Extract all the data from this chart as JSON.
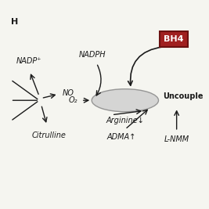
{
  "bg_color": "#f5f5f0",
  "bh4_box_color": "#a02020",
  "bh4_box_edge": "#6b1010",
  "bh4_text": "BH",
  "bh4_text_color": "#ffffff",
  "arrow_color": "#1a1a1a",
  "label_color": "#1a1a1a",
  "top_left_label": "H",
  "nadp_plus_label": "NADP⁺",
  "no_label": "NO",
  "citrulline_label": "Citrulline",
  "nadph_left_label": "NADPH",
  "o2_label": "O₂",
  "arginine_label": "Arginine↓",
  "adma_label": "ADMA↑",
  "uncoupled_label": "Uncouple",
  "lnmm_label": "L-NMM",
  "fontsize_small": 7,
  "fontsize_medium": 8,
  "ellipse_color": "#d0d0d0",
  "ellipse_edge": "#888888"
}
